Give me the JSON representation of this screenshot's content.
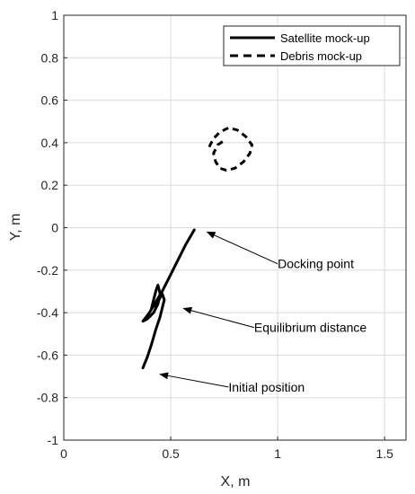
{
  "chart_data": {
    "type": "line",
    "title": "",
    "xlabel": "X, m",
    "ylabel": "Y, m",
    "xlim": [
      0,
      1.6
    ],
    "ylim": [
      -1,
      1
    ],
    "xticks": [
      0,
      0.5,
      1,
      1.5
    ],
    "xtick_labels": [
      "0",
      "0.5",
      "1",
      "1.5"
    ],
    "yticks": [
      1,
      0.8,
      0.6,
      0.4,
      0.2,
      0,
      -0.2,
      -0.4,
      -0.6,
      -0.8,
      -1
    ],
    "ytick_labels": [
      "1",
      "0.8",
      "0.6",
      "0.4",
      "0.2",
      "0",
      "-0.2",
      "-0.4",
      "-0.6",
      "-0.8",
      "-1"
    ],
    "grid": true,
    "legend_position": "top-right",
    "series": [
      {
        "name": "Satellite mock-up",
        "style": "solid",
        "color": "#000000",
        "points": [
          [
            0.61,
            -0.01
          ],
          [
            0.57,
            -0.08
          ],
          [
            0.53,
            -0.16
          ],
          [
            0.49,
            -0.24
          ],
          [
            0.46,
            -0.3
          ],
          [
            0.43,
            -0.35
          ],
          [
            0.4,
            -0.4
          ],
          [
            0.37,
            -0.44
          ],
          [
            0.39,
            -0.43
          ],
          [
            0.42,
            -0.4
          ],
          [
            0.44,
            -0.36
          ],
          [
            0.45,
            -0.31
          ],
          [
            0.44,
            -0.27
          ],
          [
            0.43,
            -0.3
          ],
          [
            0.42,
            -0.34
          ],
          [
            0.41,
            -0.38
          ],
          [
            0.44,
            -0.35
          ],
          [
            0.46,
            -0.31
          ],
          [
            0.47,
            -0.34
          ],
          [
            0.46,
            -0.38
          ],
          [
            0.45,
            -0.42
          ],
          [
            0.43,
            -0.48
          ],
          [
            0.41,
            -0.55
          ],
          [
            0.39,
            -0.61
          ],
          [
            0.37,
            -0.66
          ]
        ]
      },
      {
        "name": "Debris mock-up",
        "style": "dashed",
        "color": "#000000",
        "points": [
          [
            0.68,
            0.38
          ],
          [
            0.7,
            0.42
          ],
          [
            0.73,
            0.45
          ],
          [
            0.77,
            0.47
          ],
          [
            0.81,
            0.46
          ],
          [
            0.85,
            0.43
          ],
          [
            0.88,
            0.39
          ],
          [
            0.87,
            0.35
          ],
          [
            0.84,
            0.31
          ],
          [
            0.8,
            0.28
          ],
          [
            0.76,
            0.27
          ],
          [
            0.73,
            0.28
          ],
          [
            0.71,
            0.31
          ],
          [
            0.7,
            0.35
          ],
          [
            0.72,
            0.39
          ],
          [
            0.75,
            0.41
          ]
        ]
      }
    ],
    "annotations": [
      {
        "text": "Docking point",
        "text_x": 1.0,
        "text_y": -0.17,
        "arrow_to": [
          0.67,
          -0.02
        ]
      },
      {
        "text": "Equilibrium distance",
        "text_x": 0.89,
        "text_y": -0.47,
        "arrow_to": [
          0.56,
          -0.38
        ]
      },
      {
        "text": "Initial position",
        "text_x": 0.77,
        "text_y": -0.75,
        "arrow_to": [
          0.45,
          -0.69
        ]
      }
    ]
  }
}
